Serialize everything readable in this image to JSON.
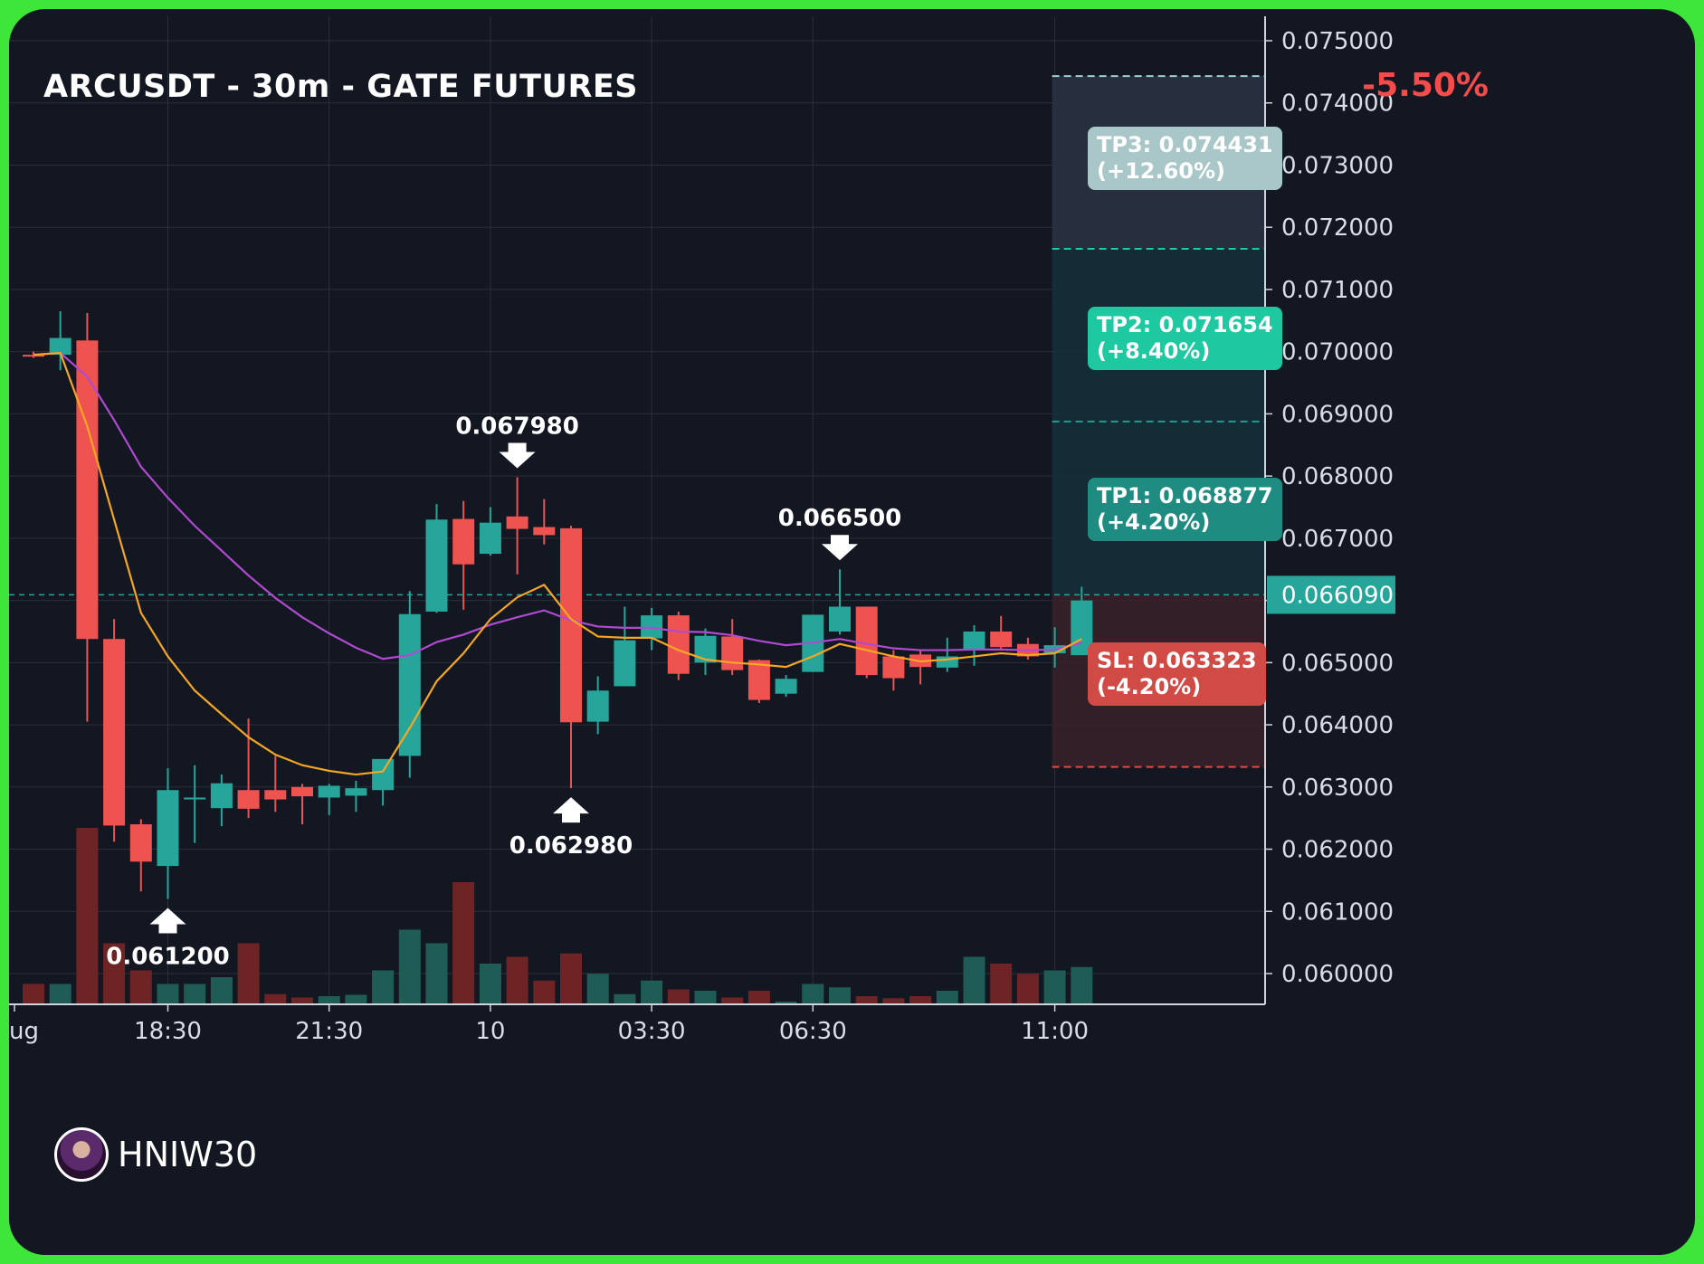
{
  "chart_data": {
    "type": "candlestick",
    "title": "ARCUSDT - 30m - GATE FUTURES",
    "change_label": "-5.50%",
    "current_price": "0.066090",
    "ylim": [
      0.0595,
      0.0755
    ],
    "y_ticks": [
      "0.075000",
      "0.074000",
      "0.073000",
      "0.072000",
      "0.071000",
      "0.070000",
      "0.069000",
      "0.068000",
      "0.067000",
      "0.066000",
      "0.065000",
      "0.064000",
      "0.063000",
      "0.062000",
      "0.061000",
      "0.060000"
    ],
    "y_tick_values": [
      0.075,
      0.074,
      0.073,
      0.072,
      0.071,
      0.07,
      0.069,
      0.068,
      0.067,
      0.066,
      0.065,
      0.064,
      0.063,
      0.062,
      0.061,
      0.06
    ],
    "x_ticks": [
      {
        "label": "ug",
        "index": -0.9
      },
      {
        "label": "18:30",
        "index": 5
      },
      {
        "label": "21:30",
        "index": 11
      },
      {
        "label": "10",
        "index": 17
      },
      {
        "label": "03:30",
        "index": 23
      },
      {
        "label": "06:30",
        "index": 29
      },
      {
        "label": "11:00",
        "index": 38
      }
    ],
    "candles": [
      {
        "o": 0.06995,
        "h": 0.07,
        "l": 0.0699,
        "c": 0.06992,
        "v": 0.3
      },
      {
        "o": 0.06995,
        "h": 0.07065,
        "l": 0.0697,
        "c": 0.07022,
        "v": 0.3
      },
      {
        "o": 0.07018,
        "h": 0.07062,
        "l": 0.06405,
        "c": 0.06538,
        "v": 2.6
      },
      {
        "o": 0.06538,
        "h": 0.0657,
        "l": 0.06212,
        "c": 0.06238,
        "v": 0.9
      },
      {
        "o": 0.0624,
        "h": 0.06248,
        "l": 0.06132,
        "c": 0.0618,
        "v": 0.5
      },
      {
        "o": 0.06173,
        "h": 0.0633,
        "l": 0.0612,
        "c": 0.06295,
        "v": 0.3
      },
      {
        "o": 0.0628,
        "h": 0.06335,
        "l": 0.0621,
        "c": 0.06283,
        "v": 0.3
      },
      {
        "o": 0.06266,
        "h": 0.0632,
        "l": 0.06237,
        "c": 0.06306,
        "v": 0.4
      },
      {
        "o": 0.06295,
        "h": 0.0641,
        "l": 0.0625,
        "c": 0.06265,
        "v": 0.9
      },
      {
        "o": 0.06295,
        "h": 0.0635,
        "l": 0.0626,
        "c": 0.0628,
        "v": 0.15
      },
      {
        "o": 0.063,
        "h": 0.06305,
        "l": 0.0624,
        "c": 0.06285,
        "v": 0.1
      },
      {
        "o": 0.06283,
        "h": 0.06305,
        "l": 0.06255,
        "c": 0.06302,
        "v": 0.12
      },
      {
        "o": 0.06286,
        "h": 0.0631,
        "l": 0.0626,
        "c": 0.06298,
        "v": 0.14
      },
      {
        "o": 0.06295,
        "h": 0.0634,
        "l": 0.0627,
        "c": 0.06345,
        "v": 0.5
      },
      {
        "o": 0.0635,
        "h": 0.06615,
        "l": 0.06315,
        "c": 0.06578,
        "v": 1.1
      },
      {
        "o": 0.06582,
        "h": 0.06755,
        "l": 0.0658,
        "c": 0.0673,
        "v": 0.9
      },
      {
        "o": 0.06731,
        "h": 0.0676,
        "l": 0.06585,
        "c": 0.06658,
        "v": 1.8
      },
      {
        "o": 0.06675,
        "h": 0.0675,
        "l": 0.06672,
        "c": 0.06725,
        "v": 0.6
      },
      {
        "o": 0.06735,
        "h": 0.06798,
        "l": 0.06642,
        "c": 0.06715,
        "v": 0.7
      },
      {
        "o": 0.06718,
        "h": 0.06763,
        "l": 0.0669,
        "c": 0.06705,
        "v": 0.35
      },
      {
        "o": 0.06716,
        "h": 0.0672,
        "l": 0.06298,
        "c": 0.06404,
        "v": 0.75
      },
      {
        "o": 0.06405,
        "h": 0.06478,
        "l": 0.06385,
        "c": 0.06455,
        "v": 0.45
      },
      {
        "o": 0.06462,
        "h": 0.0659,
        "l": 0.06462,
        "c": 0.06536,
        "v": 0.15
      },
      {
        "o": 0.06539,
        "h": 0.06588,
        "l": 0.0652,
        "c": 0.06576,
        "v": 0.35
      },
      {
        "o": 0.06576,
        "h": 0.06582,
        "l": 0.06472,
        "c": 0.06482,
        "v": 0.22
      },
      {
        "o": 0.065,
        "h": 0.06555,
        "l": 0.0648,
        "c": 0.06543,
        "v": 0.2
      },
      {
        "o": 0.06542,
        "h": 0.0657,
        "l": 0.0648,
        "c": 0.06488,
        "v": 0.1
      },
      {
        "o": 0.06504,
        "h": 0.06505,
        "l": 0.06435,
        "c": 0.0644,
        "v": 0.2
      },
      {
        "o": 0.0645,
        "h": 0.0648,
        "l": 0.06445,
        "c": 0.06474,
        "v": 0.04
      },
      {
        "o": 0.06485,
        "h": 0.06572,
        "l": 0.06485,
        "c": 0.06577,
        "v": 0.3
      },
      {
        "o": 0.0655,
        "h": 0.0665,
        "l": 0.06545,
        "c": 0.0659,
        "v": 0.25
      },
      {
        "o": 0.0659,
        "h": 0.06588,
        "l": 0.06475,
        "c": 0.0648,
        "v": 0.12
      },
      {
        "o": 0.0651,
        "h": 0.0652,
        "l": 0.06455,
        "c": 0.06475,
        "v": 0.09
      },
      {
        "o": 0.06513,
        "h": 0.0652,
        "l": 0.06465,
        "c": 0.06493,
        "v": 0.12
      },
      {
        "o": 0.06492,
        "h": 0.0654,
        "l": 0.06485,
        "c": 0.0651,
        "v": 0.2
      },
      {
        "o": 0.0652,
        "h": 0.0656,
        "l": 0.06495,
        "c": 0.0655,
        "v": 0.7
      },
      {
        "o": 0.0655,
        "h": 0.06575,
        "l": 0.0652,
        "c": 0.06525,
        "v": 0.6
      },
      {
        "o": 0.0653,
        "h": 0.0654,
        "l": 0.06505,
        "c": 0.0651,
        "v": 0.45
      },
      {
        "o": 0.06515,
        "h": 0.06557,
        "l": 0.06492,
        "c": 0.06528,
        "v": 0.5
      },
      {
        "o": 0.06512,
        "h": 0.06622,
        "l": 0.06512,
        "c": 0.066,
        "v": 0.55
      }
    ],
    "ema_fast": [
      0.06995,
      0.06998,
      0.0688,
      0.0673,
      0.0658,
      0.0651,
      0.06455,
      0.06417,
      0.0638,
      0.06352,
      0.06335,
      0.06326,
      0.0632,
      0.06325,
      0.06395,
      0.0647,
      0.06515,
      0.0657,
      0.06605,
      0.06625,
      0.0657,
      0.06542,
      0.0654,
      0.0654,
      0.0652,
      0.06505,
      0.065,
      0.06497,
      0.06493,
      0.0651,
      0.0653,
      0.0652,
      0.0651,
      0.06502,
      0.06505,
      0.0651,
      0.06515,
      0.06512,
      0.06515,
      0.06538
    ],
    "ema_slow": [
      0.06995,
      0.06998,
      0.0696,
      0.0689,
      0.06815,
      0.06765,
      0.0672,
      0.0668,
      0.0664,
      0.06604,
      0.06573,
      0.06547,
      0.06524,
      0.06506,
      0.06512,
      0.06533,
      0.06545,
      0.06561,
      0.06573,
      0.06584,
      0.06568,
      0.06558,
      0.06556,
      0.06556,
      0.0655,
      0.06549,
      0.06544,
      0.06535,
      0.06528,
      0.06532,
      0.06538,
      0.0653,
      0.06523,
      0.0652,
      0.0652,
      0.06521,
      0.06521,
      0.0652,
      0.06521,
      0.06532
    ],
    "annotations": [
      {
        "label": "0.067980",
        "index": 18,
        "price": 0.06798,
        "direction": "down"
      },
      {
        "label": "0.062980",
        "index": 20,
        "price": 0.06298,
        "direction": "up"
      },
      {
        "label": "0.066500",
        "index": 30,
        "price": 0.0665,
        "direction": "down"
      },
      {
        "label": "0.061200",
        "index": 5,
        "price": 0.0612,
        "direction": "up"
      }
    ],
    "targets": [
      {
        "label": "TP3: 0.074431\n(+12.60%)",
        "price": 0.074431,
        "color": "#9fc0c2"
      },
      {
        "label": "TP2: 0.071654\n(+8.40%)",
        "price": 0.071654,
        "color": "#1ec8a0"
      },
      {
        "label": "TP1: 0.068877\n(+4.20%)",
        "price": 0.068877,
        "color": "#1f8c82"
      },
      {
        "label": "SL: 0.063323\n(-4.20%)",
        "price": 0.063323,
        "color": "#d04a46"
      }
    ],
    "entry": 0.06609,
    "watermark": "HNIW30",
    "colors": {
      "up": "#26a69a",
      "down": "#ef5350",
      "ema_fast": "#f5a623",
      "ema_slow": "#b04ad0",
      "bg": "#131722",
      "grid": "#2a2f3a"
    }
  }
}
